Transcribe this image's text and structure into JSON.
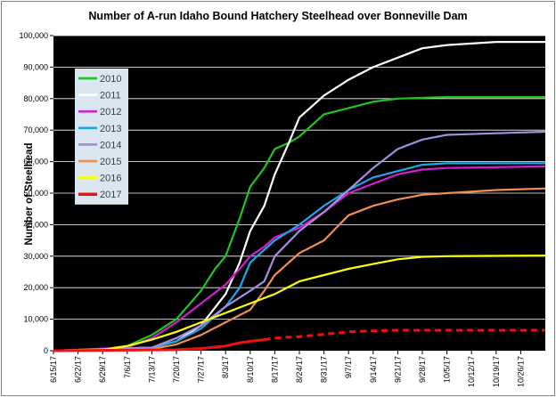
{
  "chart_data": {
    "type": "line",
    "title": "Number of A-run Idaho Bound Hatchery Steelhead over Bonneville Dam",
    "xlabel": "",
    "ylabel": "Number of Steelhead",
    "ylim": [
      0,
      100000
    ],
    "yticks": [
      "0",
      "10,000",
      "20,000",
      "30,000",
      "40,000",
      "50,000",
      "60,000",
      "70,000",
      "80,000",
      "90,000",
      "100,000"
    ],
    "xlim": [
      "6/15",
      "11/2"
    ],
    "xticks": [
      "6/15/17",
      "6/22/17",
      "6/29/17",
      "7/6/17",
      "7/13/17",
      "7/20/17",
      "7/27/17",
      "8/3/17",
      "8/10/17",
      "8/17/17",
      "8/24/17",
      "8/31/17",
      "9/7/17",
      "9/14/17",
      "9/21/17",
      "9/28/17",
      "10/5/17",
      "10/12/17",
      "10/19/17",
      "10/26/17"
    ],
    "grid": "horizontal",
    "plot_background": "#000000",
    "legend_position": "upper-left inside plot",
    "legend_background": "#dbe7f0",
    "series": [
      {
        "name": "2010",
        "color": "#22c422",
        "width": 2.2,
        "dashed": false,
        "points": [
          [
            "6/15",
            0
          ],
          [
            "6/29",
            500
          ],
          [
            "7/6",
            1500
          ],
          [
            "7/13",
            5000
          ],
          [
            "7/20",
            10000
          ],
          [
            "7/27",
            19000
          ],
          [
            "7/31",
            26000
          ],
          [
            "8/3",
            30000
          ],
          [
            "8/7",
            42000
          ],
          [
            "8/10",
            52000
          ],
          [
            "8/14",
            58000
          ],
          [
            "8/17",
            64000
          ],
          [
            "8/21",
            66000
          ],
          [
            "8/24",
            68000
          ],
          [
            "8/28",
            72000
          ],
          [
            "8/31",
            75000
          ],
          [
            "9/7",
            77000
          ],
          [
            "9/14",
            79000
          ],
          [
            "9/21",
            80000
          ],
          [
            "10/5",
            80500
          ],
          [
            "11/2",
            80500
          ]
        ]
      },
      {
        "name": "2011",
        "color": "#ffffff",
        "width": 2.2,
        "dashed": false,
        "points": [
          [
            "6/15",
            0
          ],
          [
            "7/13",
            1000
          ],
          [
            "7/20",
            3000
          ],
          [
            "7/27",
            8000
          ],
          [
            "8/3",
            18000
          ],
          [
            "8/7",
            28000
          ],
          [
            "8/10",
            38000
          ],
          [
            "8/14",
            46000
          ],
          [
            "8/17",
            56000
          ],
          [
            "8/21",
            66000
          ],
          [
            "8/24",
            74000
          ],
          [
            "8/28",
            78000
          ],
          [
            "8/31",
            81000
          ],
          [
            "9/7",
            86000
          ],
          [
            "9/14",
            90000
          ],
          [
            "9/21",
            93000
          ],
          [
            "9/28",
            96000
          ],
          [
            "10/5",
            97000
          ],
          [
            "10/12",
            97500
          ],
          [
            "10/19",
            98000
          ],
          [
            "11/2",
            98000
          ]
        ]
      },
      {
        "name": "2012",
        "color": "#d020d0",
        "width": 2.2,
        "dashed": false,
        "points": [
          [
            "6/15",
            0
          ],
          [
            "7/6",
            1000
          ],
          [
            "7/13",
            4000
          ],
          [
            "7/20",
            9000
          ],
          [
            "7/27",
            15000
          ],
          [
            "8/3",
            21000
          ],
          [
            "8/7",
            26000
          ],
          [
            "8/10",
            30000
          ],
          [
            "8/14",
            33000
          ],
          [
            "8/17",
            36000
          ],
          [
            "8/24",
            39000
          ],
          [
            "8/31",
            44000
          ],
          [
            "9/7",
            50000
          ],
          [
            "9/14",
            53000
          ],
          [
            "9/21",
            56000
          ],
          [
            "9/28",
            57500
          ],
          [
            "10/5",
            58000
          ],
          [
            "11/2",
            58500
          ]
        ]
      },
      {
        "name": "2013",
        "color": "#1ea7e8",
        "width": 2.2,
        "dashed": false,
        "points": [
          [
            "6/15",
            0
          ],
          [
            "7/13",
            1000
          ],
          [
            "7/20",
            3000
          ],
          [
            "7/27",
            7000
          ],
          [
            "8/3",
            14000
          ],
          [
            "8/7",
            20000
          ],
          [
            "8/10",
            28000
          ],
          [
            "8/14",
            32000
          ],
          [
            "8/17",
            35000
          ],
          [
            "8/24",
            40000
          ],
          [
            "8/31",
            46000
          ],
          [
            "9/7",
            51000
          ],
          [
            "9/14",
            55000
          ],
          [
            "9/21",
            57000
          ],
          [
            "9/28",
            59000
          ],
          [
            "10/5",
            59500
          ],
          [
            "11/2",
            59500
          ]
        ]
      },
      {
        "name": "2014",
        "color": "#a58ee0",
        "width": 2.2,
        "dashed": false,
        "points": [
          [
            "6/15",
            0
          ],
          [
            "7/13",
            1000
          ],
          [
            "7/20",
            4000
          ],
          [
            "7/27",
            8000
          ],
          [
            "8/3",
            14000
          ],
          [
            "8/10",
            19000
          ],
          [
            "8/14",
            22000
          ],
          [
            "8/17",
            30000
          ],
          [
            "8/24",
            38000
          ],
          [
            "8/31",
            44000
          ],
          [
            "9/7",
            51000
          ],
          [
            "9/14",
            58000
          ],
          [
            "9/21",
            64000
          ],
          [
            "9/28",
            67000
          ],
          [
            "10/5",
            68500
          ],
          [
            "10/19",
            69000
          ],
          [
            "11/2",
            69500
          ]
        ]
      },
      {
        "name": "2015",
        "color": "#f09050",
        "width": 2.2,
        "dashed": false,
        "points": [
          [
            "6/15",
            0
          ],
          [
            "7/13",
            500
          ],
          [
            "7/20",
            2000
          ],
          [
            "7/27",
            5000
          ],
          [
            "8/3",
            9000
          ],
          [
            "8/10",
            13000
          ],
          [
            "8/14",
            19000
          ],
          [
            "8/17",
            24000
          ],
          [
            "8/24",
            31000
          ],
          [
            "8/31",
            35000
          ],
          [
            "9/7",
            43000
          ],
          [
            "9/14",
            46000
          ],
          [
            "9/21",
            48000
          ],
          [
            "9/28",
            49500
          ],
          [
            "10/5",
            50000
          ],
          [
            "10/19",
            51000
          ],
          [
            "11/2",
            51500
          ]
        ]
      },
      {
        "name": "2016",
        "color": "#ffff00",
        "width": 2.2,
        "dashed": false,
        "points": [
          [
            "6/15",
            0
          ],
          [
            "6/29",
            300
          ],
          [
            "7/6",
            1500
          ],
          [
            "7/13",
            3500
          ],
          [
            "7/20",
            6000
          ],
          [
            "7/27",
            9000
          ],
          [
            "8/3",
            12000
          ],
          [
            "8/10",
            15000
          ],
          [
            "8/17",
            18000
          ],
          [
            "8/24",
            22000
          ],
          [
            "8/31",
            24000
          ],
          [
            "9/7",
            26000
          ],
          [
            "9/14",
            27500
          ],
          [
            "9/21",
            29000
          ],
          [
            "9/28",
            29800
          ],
          [
            "10/5",
            30000
          ],
          [
            "11/2",
            30200
          ]
        ]
      },
      {
        "name": "2017",
        "color": "#ee1111",
        "width": 3,
        "dashed": false,
        "points": [
          [
            "6/15",
            0
          ],
          [
            "7/20",
            300
          ],
          [
            "7/27",
            700
          ],
          [
            "8/3",
            1500
          ],
          [
            "8/7",
            2500
          ],
          [
            "8/10",
            3000
          ],
          [
            "8/14",
            3500
          ]
        ]
      },
      {
        "name": "2017",
        "color": "#ee1111",
        "width": 3,
        "dashed": true,
        "points": [
          [
            "8/14",
            3500
          ],
          [
            "8/17",
            4000
          ],
          [
            "8/24",
            4500
          ],
          [
            "8/31",
            5200
          ],
          [
            "9/7",
            6000
          ],
          [
            "9/14",
            6300
          ],
          [
            "9/21",
            6500
          ],
          [
            "11/2",
            6500
          ]
        ]
      }
    ]
  }
}
